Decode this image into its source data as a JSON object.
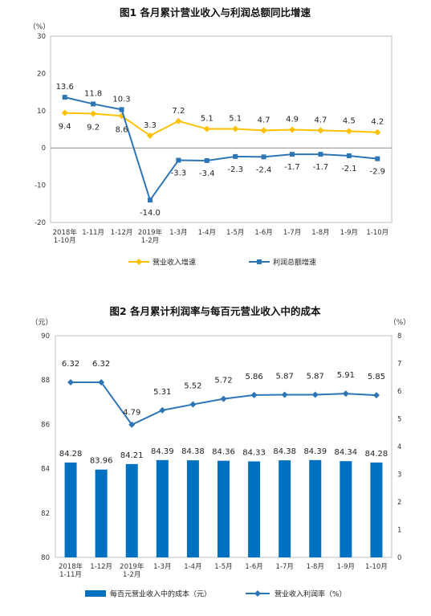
{
  "chart_data": [
    {
      "type": "line",
      "title": "图1  各月累计营业收入与利润总额同比增速",
      "ylabel": "（%）",
      "ylim": [
        -20,
        30
      ],
      "yticks": [
        "30",
        "20",
        "10",
        "0",
        "-10",
        "-20"
      ],
      "categories": [
        [
          "2018年",
          "1-10月"
        ],
        [
          "1-11月"
        ],
        [
          "1-12月"
        ],
        [
          "2019年",
          "1-2月"
        ],
        [
          "1-3月"
        ],
        [
          "1-4月"
        ],
        [
          "1-5月"
        ],
        [
          "1-6月"
        ],
        [
          "1-7月"
        ],
        [
          "1-8月"
        ],
        [
          "1-9月"
        ],
        [
          "1-10月"
        ]
      ],
      "legend_position": "bottom",
      "series": [
        {
          "name": "营业收入增速",
          "color": "#FFC000",
          "values": [
            9.4,
            9.2,
            8.6,
            3.3,
            7.2,
            5.1,
            5.1,
            4.7,
            4.9,
            4.7,
            4.5,
            4.2
          ],
          "labels": [
            "9.4",
            "9.2",
            "8.6",
            "3.3",
            "7.2",
            "5.1",
            "5.1",
            "4.7",
            "4.9",
            "4.7",
            "4.5",
            "4.2"
          ]
        },
        {
          "name": "利润总额增速",
          "color": "#2E75B6",
          "values": [
            13.6,
            11.8,
            10.3,
            -14.0,
            -3.3,
            -3.4,
            -2.3,
            -2.4,
            -1.7,
            -1.7,
            -2.1,
            -2.9
          ],
          "labels": [
            "13.6",
            "11.8",
            "10.3",
            "-14.0",
            "-3.3",
            "-3.4",
            "-2.3",
            "-2.4",
            "-1.7",
            "-1.7",
            "-2.1",
            "-2.9"
          ]
        }
      ]
    },
    {
      "type": "bar+line",
      "title": "图2  各月累计利润率与每百元营业收入中的成本",
      "ylabel_left": "（元）",
      "ylabel_right": "（%）",
      "ylim_left": [
        80,
        90
      ],
      "ylim_right": [
        0,
        8
      ],
      "yticks_left": [
        "90",
        "88",
        "86",
        "84",
        "82",
        "80"
      ],
      "yticks_right": [
        "8",
        "7",
        "6",
        "5",
        "4",
        "3",
        "2",
        "1",
        "0"
      ],
      "categories": [
        [
          "2018年",
          "1-11月"
        ],
        [
          "1-12月"
        ],
        [
          "2019年",
          "1-2月"
        ],
        [
          "1-3月"
        ],
        [
          "1-4月"
        ],
        [
          "1-5月"
        ],
        [
          "1-6月"
        ],
        [
          "1-7月"
        ],
        [
          "1-8月"
        ],
        [
          "1-9月"
        ],
        [
          "1-10月"
        ]
      ],
      "legend_position": "bottom",
      "bars": {
        "name": "每百元营业收入中的成本（元）",
        "color": "#0070C0",
        "values": [
          84.28,
          83.96,
          84.21,
          84.39,
          84.38,
          84.36,
          84.33,
          84.38,
          84.39,
          84.34,
          84.28
        ],
        "labels": [
          "84.28",
          "83.96",
          "84.21",
          "84.39",
          "84.38",
          "84.36",
          "84.33",
          "84.38",
          "84.39",
          "84.34",
          "84.28"
        ]
      },
      "line": {
        "name": "营业收入利润率（%）",
        "color": "#2E75B6",
        "values": [
          6.32,
          6.32,
          4.79,
          5.31,
          5.52,
          5.72,
          5.86,
          5.87,
          5.87,
          5.91,
          5.85
        ],
        "labels": [
          "6.32",
          "6.32",
          "4.79",
          "5.31",
          "5.52",
          "5.72",
          "5.86",
          "5.87",
          "5.87",
          "5.91",
          "5.85"
        ]
      }
    }
  ]
}
